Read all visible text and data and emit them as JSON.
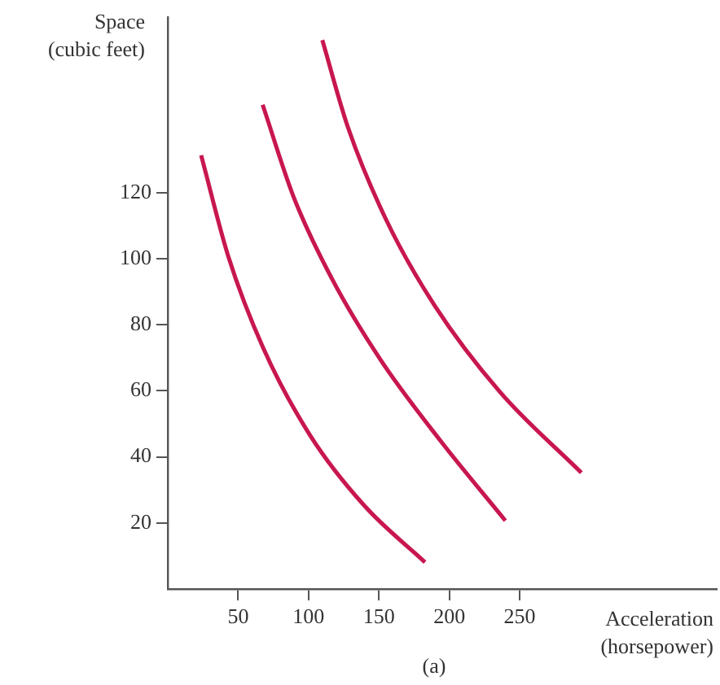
{
  "chart_data": {
    "type": "line",
    "xlabel": "Acceleration\n(horsepower)",
    "ylabel": "Space\n(cubic feet)",
    "annotations": [
      "(a)"
    ],
    "xlim": [
      0,
      390
    ],
    "ylim": [
      0,
      173
    ],
    "xticks": [
      50,
      100,
      150,
      200,
      250
    ],
    "yticks": [
      20,
      40,
      60,
      80,
      100,
      120
    ],
    "line_style": "solid",
    "series": [
      {
        "color": "#c8174f",
        "x": [
          23.7,
          43,
          68,
          101,
          139.5,
          182.7
        ],
        "values": [
          131.3,
          100.7,
          72.8,
          46.6,
          25.3,
          8.1
        ]
      },
      {
        "color": "#c8174f",
        "x": [
          67.4,
          89.4,
          116.4,
          151,
          193.5,
          239.8
        ],
        "values": [
          146.6,
          118.7,
          94.1,
          69.5,
          45,
          20.7
        ]
      },
      {
        "color": "#c8174f",
        "x": [
          109.8,
          127.9,
          154.9,
          189.6,
          235.9,
          293.8
        ],
        "values": [
          166.2,
          139.9,
          112,
          85.8,
          59.7,
          35.2
        ]
      }
    ]
  }
}
